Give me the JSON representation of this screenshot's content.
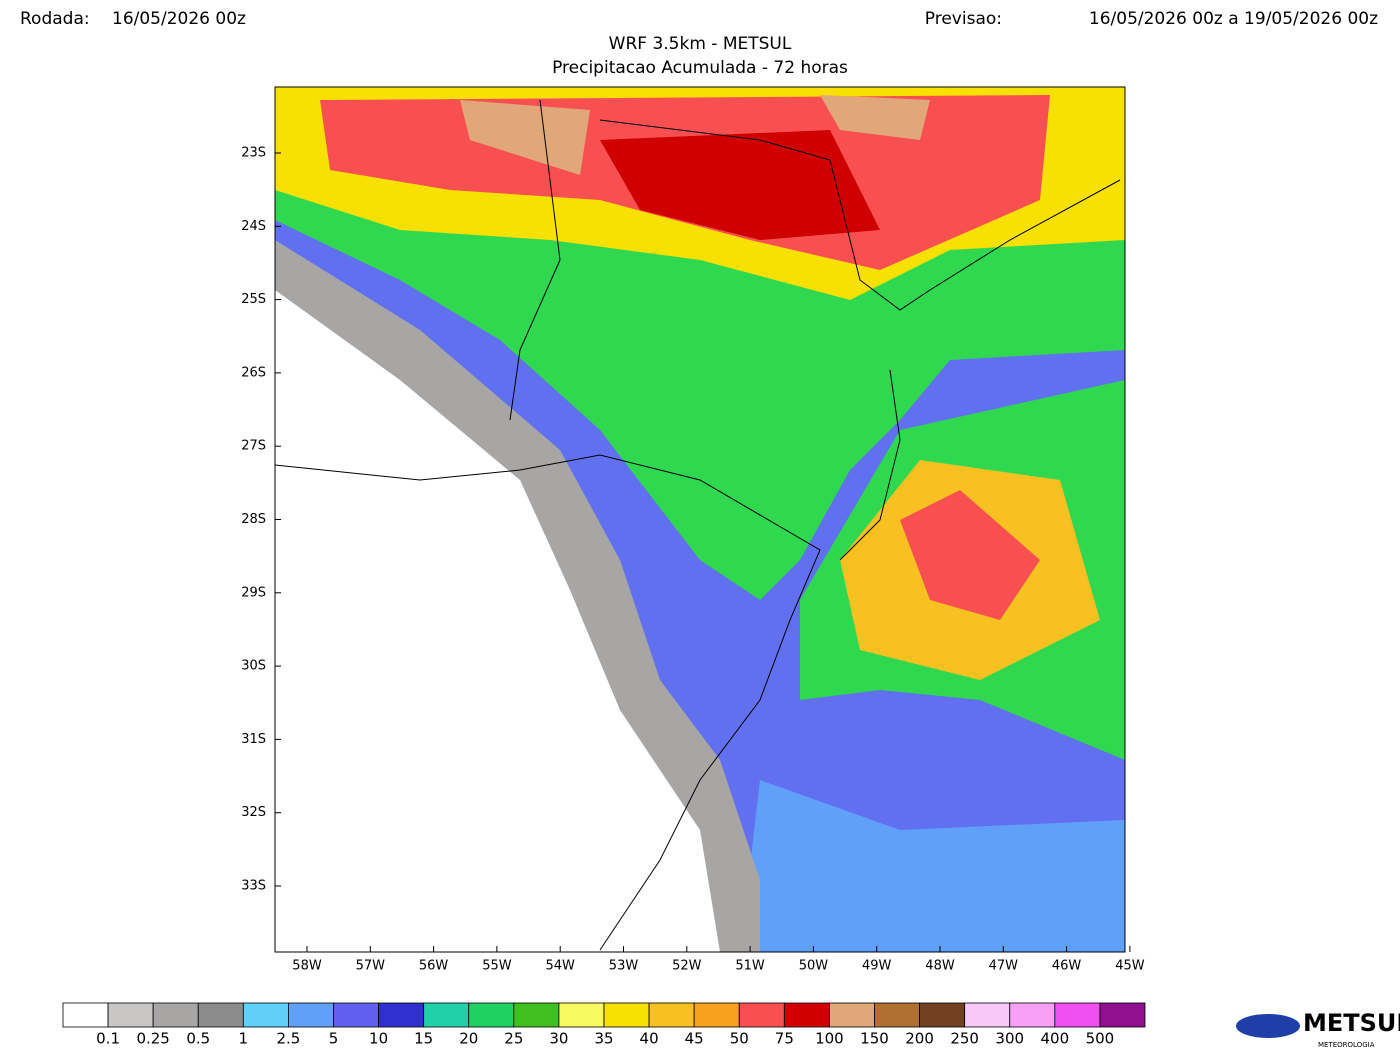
{
  "header": {
    "run_label": "Rodada:",
    "run_value": "16/05/2026 00z",
    "forecast_label": "Previsao:",
    "forecast_value": "16/05/2026 00z a 19/05/2026 00z"
  },
  "title": "WRF 3.5km - METSUL",
  "subtitle": "Precipitacao Acumulada - 72 horas",
  "map": {
    "lat_labels": [
      "23S",
      "24S",
      "25S",
      "26S",
      "27S",
      "28S",
      "29S",
      "30S",
      "31S",
      "32S",
      "33S"
    ],
    "lon_labels": [
      "58W",
      "57W",
      "56W",
      "55W",
      "54W",
      "53W",
      "52W",
      "51W",
      "50W",
      "49W",
      "48W",
      "47W",
      "46W",
      "45W"
    ]
  },
  "colorbar": {
    "colors": [
      "#ffffff",
      "#c9c6c6",
      "#a8a5a5",
      "#8c8c8c",
      "#60d0f8",
      "#60a0f8",
      "#6060f0",
      "#3030d0",
      "#20d0a8",
      "#20d060",
      "#40c020",
      "#f8f860",
      "#f8e000",
      "#f8c020",
      "#f8a020",
      "#f85050",
      "#d00000",
      "#e0a878",
      "#b07030",
      "#704020",
      "#f8c8f8",
      "#f8a0f8",
      "#f050f0",
      "#901090"
    ],
    "labels": [
      "0.1",
      "0.25",
      "0.5",
      "1",
      "2.5",
      "5",
      "10",
      "15",
      "20",
      "25",
      "30",
      "35",
      "40",
      "45",
      "50",
      "75",
      "100",
      "150",
      "200",
      "250",
      "300",
      "400",
      "500"
    ]
  },
  "logo": {
    "name": "METSUL",
    "tagline": "METEOROLOGIA"
  }
}
